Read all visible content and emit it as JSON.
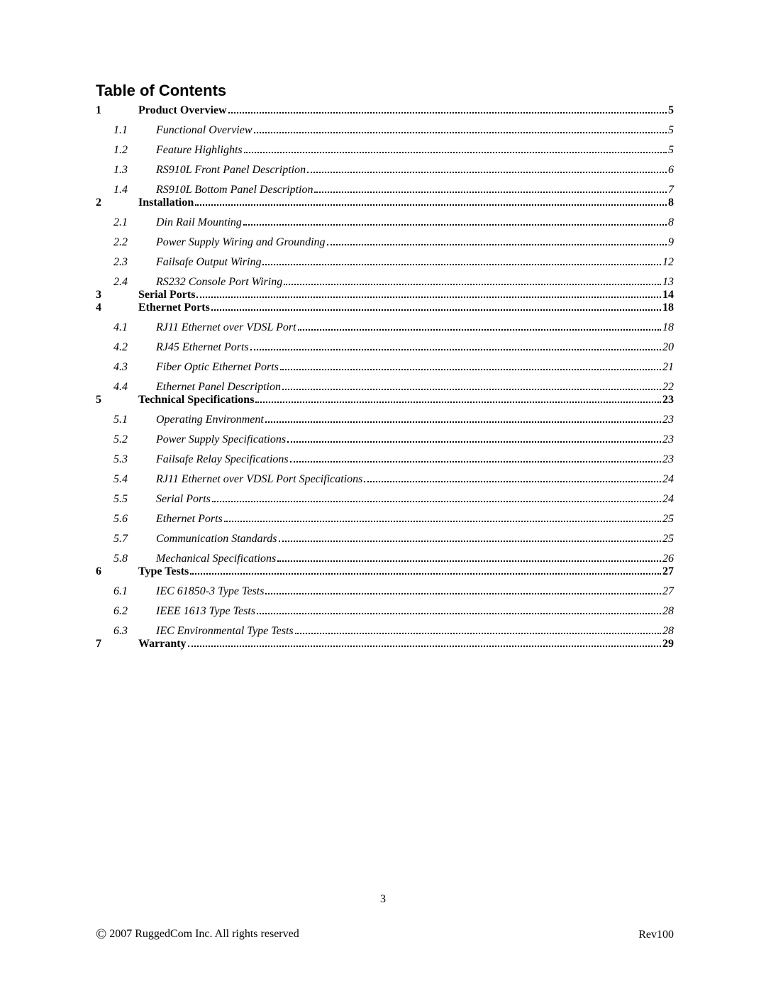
{
  "title": "Table of Contents",
  "entries": [
    {
      "type": "section",
      "num": "1",
      "text": "Product Overview",
      "page": "5",
      "gapBefore": false
    },
    {
      "type": "sub",
      "num": "1.1",
      "text": "Functional Overview",
      "page": "5",
      "gapBefore": true
    },
    {
      "type": "sub",
      "num": "1.2",
      "text": "Feature Highlights",
      "page": "5",
      "gapBefore": true
    },
    {
      "type": "sub",
      "num": "1.3",
      "text": "RS910L Front Panel Description",
      "page": "6",
      "gapBefore": true
    },
    {
      "type": "sub",
      "num": "1.4",
      "text": "RS910L Bottom Panel Description",
      "page": "7",
      "gapBefore": true
    },
    {
      "type": "section",
      "num": "2",
      "text": "Installation",
      "page": "8",
      "gapBefore": false
    },
    {
      "type": "sub",
      "num": "2.1",
      "text": "Din Rail Mounting",
      "page": "8",
      "gapBefore": true
    },
    {
      "type": "sub",
      "num": "2.2",
      "text": "Power Supply Wiring and Grounding",
      "page": "9",
      "gapBefore": true
    },
    {
      "type": "sub",
      "num": "2.3",
      "text": "Failsafe Output Wiring",
      "page": "12",
      "gapBefore": true
    },
    {
      "type": "sub",
      "num": "2.4",
      "text": "RS232 Console Port Wiring",
      "page": "13",
      "gapBefore": true
    },
    {
      "type": "section",
      "num": "3",
      "text": "Serial Ports",
      "page": "14",
      "gapBefore": false
    },
    {
      "type": "section",
      "num": "4",
      "text": "Ethernet Ports",
      "page": "18",
      "gapBefore": false
    },
    {
      "type": "sub",
      "num": "4.1",
      "text": "RJ11 Ethernet over VDSL Port",
      "page": "18",
      "gapBefore": true
    },
    {
      "type": "sub",
      "num": "4.2",
      "text": "RJ45 Ethernet Ports",
      "page": "20",
      "gapBefore": true
    },
    {
      "type": "sub",
      "num": "4.3",
      "text": "Fiber Optic Ethernet Ports",
      "page": "21",
      "gapBefore": true
    },
    {
      "type": "sub",
      "num": "4.4",
      "text": "Ethernet Panel Description",
      "page": "22",
      "gapBefore": true
    },
    {
      "type": "section",
      "num": "5",
      "text": "Technical Specifications",
      "page": "23",
      "gapBefore": false
    },
    {
      "type": "sub",
      "num": "5.1",
      "text": "Operating Environment",
      "page": "23",
      "gapBefore": true
    },
    {
      "type": "sub",
      "num": "5.2",
      "text": "Power Supply Specifications",
      "page": "23",
      "gapBefore": true
    },
    {
      "type": "sub",
      "num": "5.3",
      "text": "Failsafe Relay Specifications",
      "page": "23",
      "gapBefore": true
    },
    {
      "type": "sub",
      "num": "5.4",
      "text": "RJ11 Ethernet over VDSL Port Specifications",
      "page": "24",
      "gapBefore": true
    },
    {
      "type": "sub",
      "num": "5.5",
      "text": "Serial Ports",
      "page": "24",
      "gapBefore": true
    },
    {
      "type": "sub",
      "num": "5.6",
      "text": "Ethernet Ports",
      "page": "25",
      "gapBefore": true
    },
    {
      "type": "sub",
      "num": "5.7",
      "text": "Communication Standards",
      "page": "25",
      "gapBefore": true
    },
    {
      "type": "sub",
      "num": "5.8",
      "text": "Mechanical Specifications",
      "page": "26",
      "gapBefore": true
    },
    {
      "type": "section",
      "num": "6",
      "text": "Type Tests",
      "page": "27",
      "gapBefore": false
    },
    {
      "type": "sub",
      "num": "6.1",
      "text": "IEC 61850-3 Type Tests",
      "page": "27",
      "gapBefore": true
    },
    {
      "type": "sub",
      "num": "6.2",
      "text": "IEEE 1613 Type Tests",
      "page": "28",
      "gapBefore": true
    },
    {
      "type": "sub",
      "num": "6.3",
      "text": "IEC Environmental Type Tests",
      "page": "28",
      "gapBefore": true
    },
    {
      "type": "section",
      "num": "7",
      "text": "Warranty",
      "page": "29",
      "gapBefore": false
    }
  ],
  "footer": {
    "pageNumber": "3",
    "copyright": "2007 RuggedCom Inc. All rights reserved",
    "revision": "Rev100"
  }
}
